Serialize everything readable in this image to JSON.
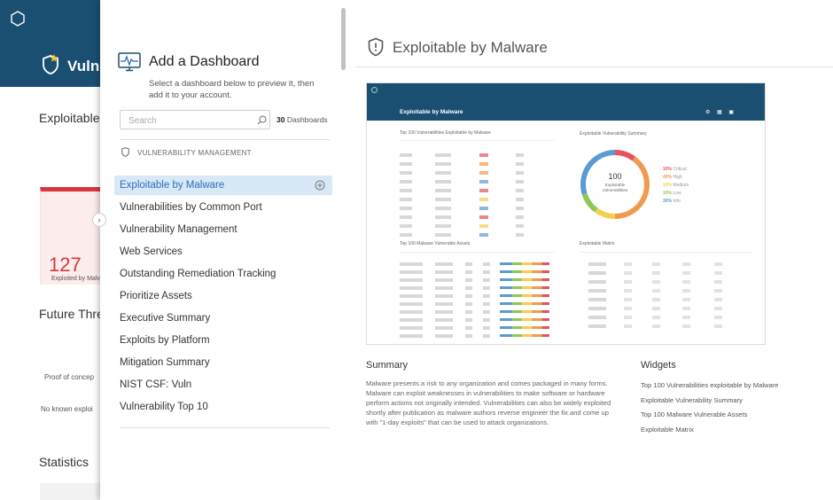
{
  "background": {
    "app_title": "Vulne",
    "section_title": "Exploitable",
    "card_value": "127",
    "card_label": "Exploited by Malv",
    "future_title": "Future Thre",
    "proof_text": "Proof of concep",
    "no_known_text": "No known exploi",
    "statistics_title": "Statistics",
    "expander_glyph": "›"
  },
  "panel": {
    "title": "Add a Dashboard",
    "description": "Select a dashboard below to preview it, then add it to your account.",
    "search_placeholder": "Search",
    "count_number": "30",
    "count_label": "Dashboards",
    "category": "VULNERABILITY MANAGEMENT",
    "items": [
      {
        "label": "Exploitable by Malware",
        "selected": true
      },
      {
        "label": "Vulnerabilities by Common Port"
      },
      {
        "label": "Vulnerability Management"
      },
      {
        "label": "Web Services"
      },
      {
        "label": "Outstanding Remediation Tracking"
      },
      {
        "label": "Prioritize Assets"
      },
      {
        "label": "Executive Summary"
      },
      {
        "label": "Exploits by Platform"
      },
      {
        "label": "Mitigation Summary"
      },
      {
        "label": "NIST CSF: Vuln"
      },
      {
        "label": "Vulnerability Top 10"
      }
    ]
  },
  "preview": {
    "title": "Exploitable by Malware",
    "thumbnail": {
      "title": "Exploitable by Malware",
      "tools": "⚙ ▦ ▣",
      "w1_title": "Top 100 Vulnerabilities Exploitable by Malware",
      "w2_title": "Exploitable Vulnerability Summary",
      "w3_title": "Top 100 Malware Vulnerable Assets",
      "w4_title": "Exploitable Matrix",
      "donut_value": "100",
      "donut_label": "Exploitable Vulnerabilities",
      "legend": [
        {
          "pct": "10%",
          "name": "Critical",
          "color": "#e8515f"
        },
        {
          "pct": "40%",
          "name": "High",
          "color": "#f19a4d"
        },
        {
          "pct": "10%",
          "name": "Medium",
          "color": "#f4cf4d"
        },
        {
          "pct": "10%",
          "name": "Low",
          "color": "#8fc857"
        },
        {
          "pct": "30%",
          "name": "Info",
          "color": "#5b9bd5"
        }
      ]
    },
    "summary_title": "Summary",
    "summary_text": "Malware presents a risk to any organization and comes packaged in many forms. Malware can exploit weaknesses in vulnerabilities to make software or hardware perform actions not originally intended. Vulnerabilities can also be widely exploited shortly after publication as malware authors reverse engineer the fix and come up with \"1-day exploits\" that can be used to attack organizations.",
    "widgets_title": "Widgets",
    "widgets": [
      "Top 100 Vulnerabilities exploitable by Malware",
      "Exploitable Vulnerability Summary",
      "Top 100 Malware Vulnerable Assets",
      "Exploitable Matrix"
    ]
  },
  "colors": {
    "header_bg": "#1b4f72",
    "accent_blue": "#2a6ebb",
    "selected_bg": "#d8e8f6",
    "critical_red": "#d9363e"
  }
}
